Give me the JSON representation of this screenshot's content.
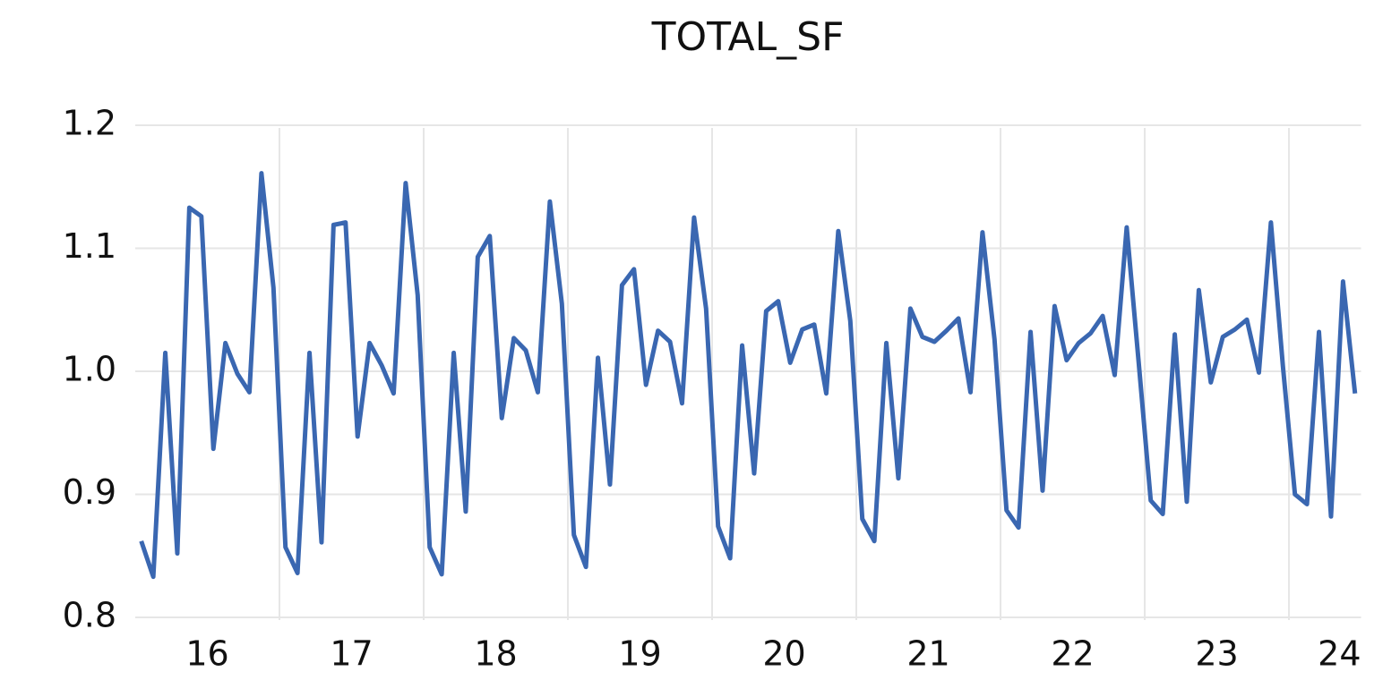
{
  "chart_data": {
    "type": "line",
    "title": "TOTAL_SF",
    "x": [
      16.0417,
      16.125,
      16.2083,
      16.2917,
      16.375,
      16.4583,
      16.5417,
      16.625,
      16.7083,
      16.7917,
      16.875,
      16.9583,
      17.0417,
      17.125,
      17.2083,
      17.2917,
      17.375,
      17.4583,
      17.5417,
      17.625,
      17.7083,
      17.7917,
      17.875,
      17.9583,
      18.0417,
      18.125,
      18.2083,
      18.2917,
      18.375,
      18.4583,
      18.5417,
      18.625,
      18.7083,
      18.7917,
      18.875,
      18.9583,
      19.0417,
      19.125,
      19.2083,
      19.2917,
      19.375,
      19.4583,
      19.5417,
      19.625,
      19.7083,
      19.7917,
      19.875,
      19.9583,
      20.0417,
      20.125,
      20.2083,
      20.2917,
      20.375,
      20.4583,
      20.5417,
      20.625,
      20.7083,
      20.7917,
      20.875,
      20.9583,
      21.0417,
      21.125,
      21.2083,
      21.2917,
      21.375,
      21.4583,
      21.5417,
      21.625,
      21.7083,
      21.7917,
      21.875,
      21.9583,
      22.0417,
      22.125,
      22.2083,
      22.2917,
      22.375,
      22.4583,
      22.5417,
      22.625,
      22.7083,
      22.7917,
      22.875,
      22.9583,
      23.0417,
      23.125,
      23.2083,
      23.2917,
      23.375,
      23.4583,
      23.5417,
      23.625,
      23.7083,
      23.7917,
      23.875,
      23.9583,
      24.0417,
      24.125,
      24.2083,
      24.2917,
      24.375,
      24.4583
    ],
    "series": [
      {
        "name": "TOTAL_SF",
        "color": "#3a67b1",
        "values": [
          0.862,
          0.833,
          1.015,
          0.852,
          1.133,
          1.126,
          0.937,
          1.023,
          0.998,
          0.983,
          1.161,
          1.068,
          0.857,
          0.836,
          1.015,
          0.861,
          1.119,
          1.121,
          0.947,
          1.023,
          1.005,
          0.982,
          1.153,
          1.062,
          0.857,
          0.835,
          1.015,
          0.886,
          1.093,
          1.11,
          0.962,
          1.027,
          1.017,
          0.983,
          1.138,
          1.055,
          0.867,
          0.841,
          1.011,
          0.908,
          1.07,
          1.083,
          0.989,
          1.033,
          1.024,
          0.974,
          1.125,
          1.051,
          0.874,
          0.848,
          1.021,
          0.917,
          1.049,
          1.057,
          1.007,
          1.034,
          1.038,
          0.982,
          1.114,
          1.041,
          0.88,
          0.862,
          1.023,
          0.913,
          1.051,
          1.028,
          1.024,
          1.033,
          1.043,
          0.983,
          1.113,
          1.026,
          0.887,
          0.873,
          1.032,
          0.903,
          1.053,
          1.009,
          1.023,
          1.031,
          1.045,
          0.997,
          1.117,
          1.007,
          0.895,
          0.884,
          1.03,
          0.894,
          1.066,
          0.991,
          1.028,
          1.034,
          1.042,
          0.999,
          1.121,
          1.004,
          0.9,
          0.892,
          1.032,
          0.882,
          1.073,
          0.982
        ]
      }
    ],
    "xlim": [
      16,
      24.5
    ],
    "xticks": [
      {
        "value": 16.5,
        "label": "16"
      },
      {
        "value": 17.5,
        "label": "17"
      },
      {
        "value": 18.5,
        "label": "18"
      },
      {
        "value": 19.5,
        "label": "19"
      },
      {
        "value": 20.5,
        "label": "20"
      },
      {
        "value": 21.5,
        "label": "21"
      },
      {
        "value": 22.5,
        "label": "22"
      },
      {
        "value": 23.5,
        "label": "23"
      },
      {
        "value": 24.35,
        "label": "24"
      }
    ],
    "x_gridlines": [
      17,
      18,
      19,
      20,
      21,
      22,
      23,
      24
    ],
    "ylim": [
      0.8,
      1.2
    ],
    "yticks": [
      0.8,
      0.9,
      {
        "value": 1.0,
        "label": "1.0"
      },
      1.1,
      1.2
    ],
    "grid": true
  }
}
